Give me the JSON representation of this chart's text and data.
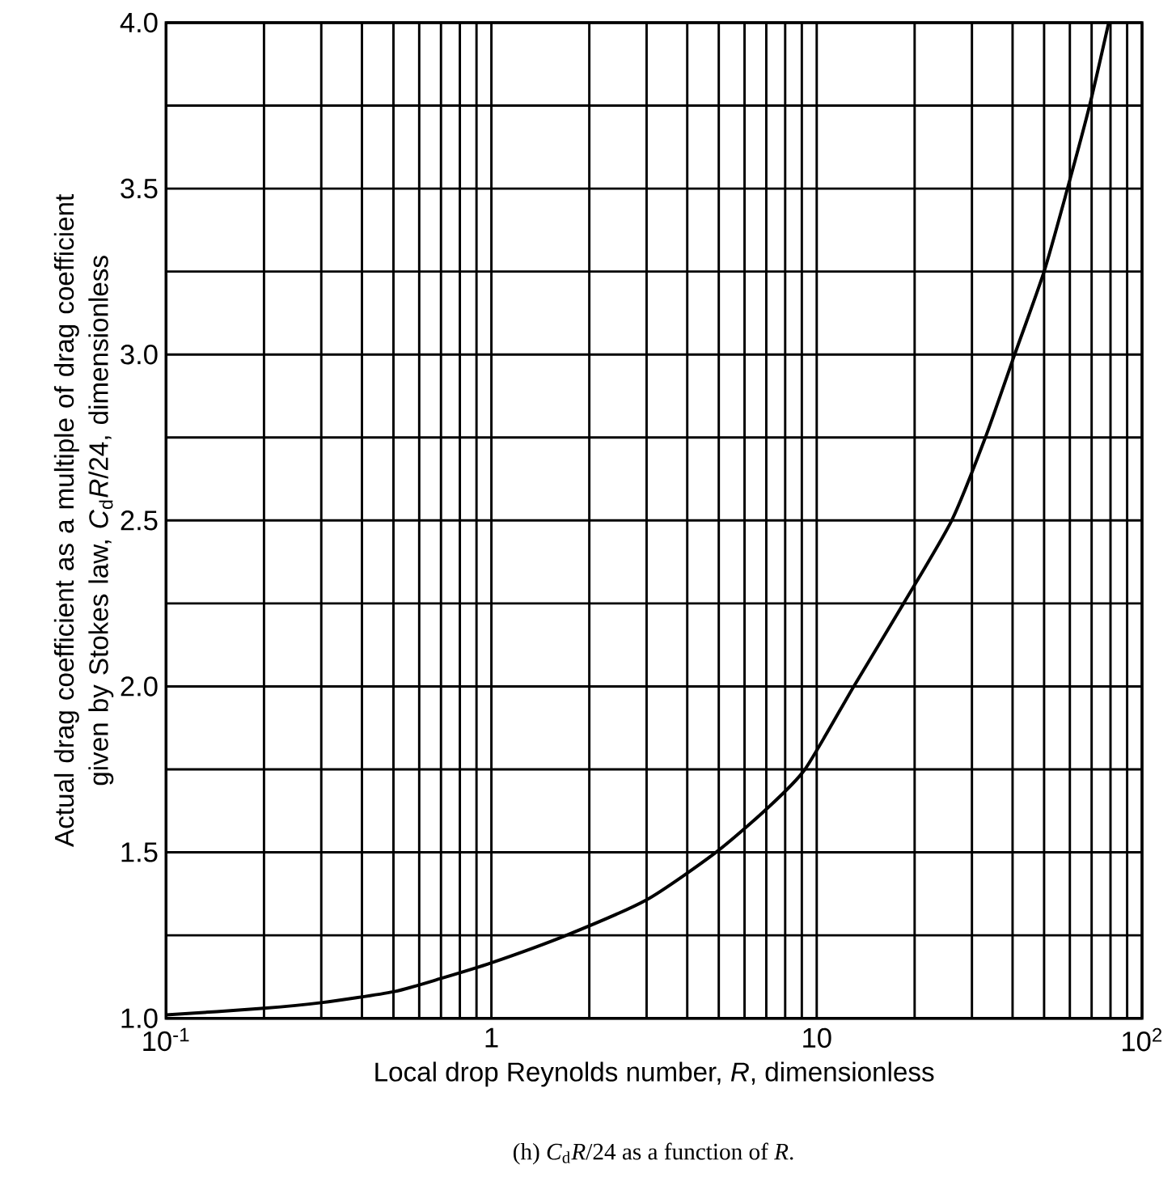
{
  "chart_data": {
    "type": "line",
    "xlabel": "Local drop Reynolds number, *R*, dimensionless",
    "ylabel": "Actual drag coefficient as a multiple of drag coefficient given by Stokes law, *C*$_{d}$*R*/24, dimensionless",
    "annotations": [
      "(h) *C*$_{d}$*R*/24 as a function of *R*."
    ],
    "x": [
      0.1,
      0.2,
      0.3,
      0.5,
      0.7,
      1,
      1.7,
      3,
      4.9,
      7,
      9.2,
      13,
      18.5,
      26,
      33,
      40.6,
      50,
      59,
      69,
      79
    ],
    "values": [
      1.01,
      1.03,
      1.047,
      1.08,
      1.12,
      1.167,
      1.25,
      1.357,
      1.5,
      1.63,
      1.75,
      2.0,
      2.25,
      2.5,
      2.75,
      3.0,
      3.25,
      3.5,
      3.75,
      4.0
    ],
    "color": "#000000",
    "log": "x",
    "grid": true,
    "xlim": [
      0.1,
      100
    ],
    "ylim": [
      1,
      4
    ],
    "xticks": [
      {
        "value": 0.1,
        "label": "10$^{-1}$"
      },
      {
        "value": 0.2,
        "label": null
      },
      {
        "value": 0.3,
        "label": null
      },
      {
        "value": 0.4,
        "label": null
      },
      {
        "value": 0.5,
        "label": null
      },
      {
        "value": 0.6,
        "label": null
      },
      {
        "value": 0.7,
        "label": null
      },
      {
        "value": 0.8,
        "label": null
      },
      {
        "value": 0.9,
        "label": null
      },
      {
        "value": 1,
        "label": "1"
      },
      {
        "value": 2,
        "label": null
      },
      {
        "value": 3,
        "label": null
      },
      {
        "value": 4,
        "label": null
      },
      {
        "value": 5,
        "label": null
      },
      {
        "value": 6,
        "label": null
      },
      {
        "value": 7,
        "label": null
      },
      {
        "value": 8,
        "label": null
      },
      {
        "value": 9,
        "label": null
      },
      {
        "value": 10,
        "label": "10"
      },
      {
        "value": 20,
        "label": null
      },
      {
        "value": 30,
        "label": null
      },
      {
        "value": 40,
        "label": null
      },
      {
        "value": 50,
        "label": null
      },
      {
        "value": 60,
        "label": null
      },
      {
        "value": 70,
        "label": null
      },
      {
        "value": 80,
        "label": null
      },
      {
        "value": 90,
        "label": null
      },
      {
        "value": 100,
        "label": "10$^{2}$"
      }
    ],
    "yticks": [
      {
        "value": 1,
        "label": "1.0"
      },
      {
        "value": 1.25,
        "label": null
      },
      {
        "value": 1.5,
        "label": "1.5"
      },
      {
        "value": 1.75,
        "label": null
      },
      {
        "value": 2,
        "label": "2.0"
      },
      {
        "value": 2.25,
        "label": null
      },
      {
        "value": 2.5,
        "label": "2.5"
      },
      {
        "value": 2.75,
        "label": null
      },
      {
        "value": 3,
        "label": "3.0"
      },
      {
        "value": 3.25,
        "label": null
      },
      {
        "value": 3.5,
        "label": "3.5"
      },
      {
        "value": 3.75,
        "label": null
      },
      {
        "value": 4,
        "label": "4.0"
      }
    ]
  }
}
